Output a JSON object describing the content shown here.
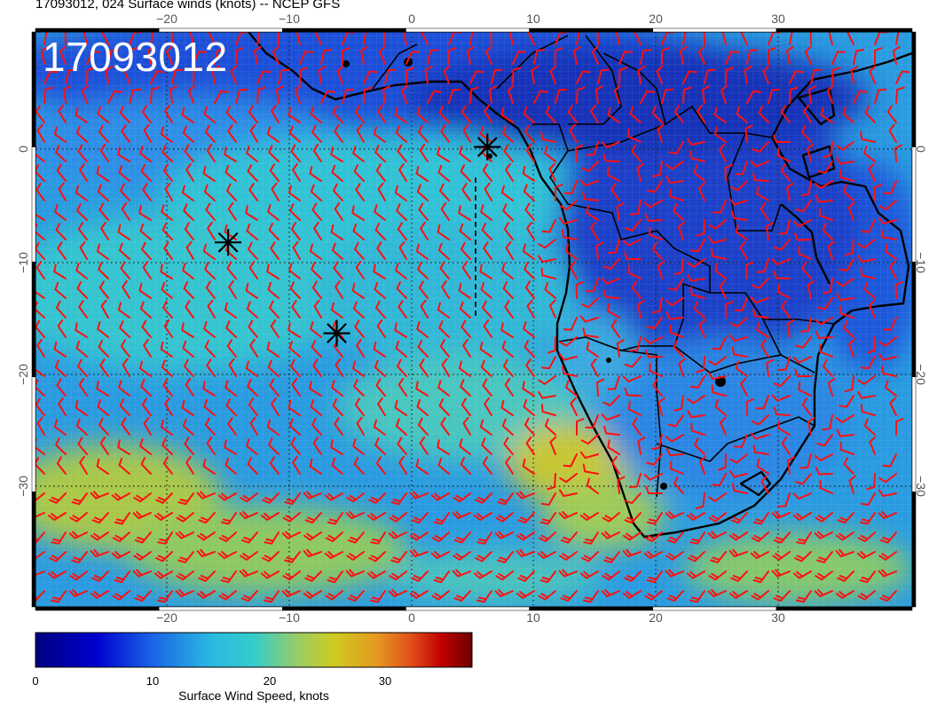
{
  "title": "17093012, 024 Surface winds (knots) -- NCEP GFS",
  "stamp": "17093012",
  "axes": {
    "lon_ticks": [
      "−20",
      "−10",
      "0",
      "10",
      "20",
      "30"
    ],
    "lat_ticks": [
      "0",
      "−10",
      "−20",
      "−30"
    ],
    "lon_range": [
      -30,
      41
    ],
    "lat_range": [
      -40,
      10
    ]
  },
  "colorbar": {
    "label": "Surface Wind Speed, knots",
    "ticks": [
      "0",
      "10",
      "20",
      "30"
    ],
    "range": [
      0,
      37
    ],
    "colors": [
      "#00007f",
      "#0000cc",
      "#1a55e0",
      "#2aa6e6",
      "#33cccc",
      "#66d4a0",
      "#cccc22",
      "#e6a020",
      "#e05a10",
      "#c00000",
      "#7f0000"
    ]
  },
  "colors": {
    "wind_barbs": "#ff0000",
    "coastline": "#000000",
    "ocean_base": "#2f9ee0"
  },
  "markers": [
    {
      "name": "storm-marker-1",
      "lon": -14.4,
      "lat": -8.3
    },
    {
      "name": "storm-marker-2",
      "lon": -5.6,
      "lat": -16.2
    },
    {
      "name": "storm-marker-3",
      "lon": 6.6,
      "lat": 0.0
    }
  ]
}
